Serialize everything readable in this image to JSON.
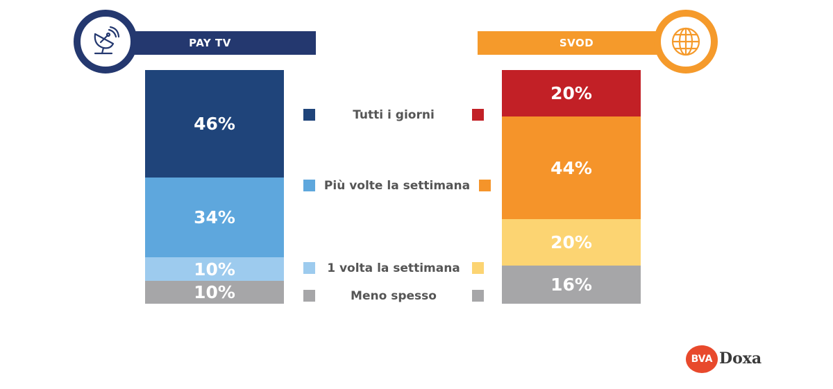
{
  "colors": {
    "paytv_header": "#24386f",
    "svod_header": "#f59a2b"
  },
  "headers": {
    "paytv": "PAY TV",
    "svod": "SVOD"
  },
  "icons": {
    "paytv": "satellite-dish-icon",
    "svod": "globe-icon"
  },
  "logo": {
    "badge": "BVA",
    "text": "Doxa"
  },
  "chart_data": {
    "type": "bar",
    "stacked": true,
    "categories": [
      "PAY TV",
      "SVOD"
    ],
    "series": [
      {
        "name": "Tutti i giorni",
        "values": [
          46,
          20
        ],
        "colors": [
          "#1f447a",
          "#c22026"
        ],
        "labels": [
          "46%",
          "20%"
        ]
      },
      {
        "name": "Più volte la settimana",
        "values": [
          34,
          44
        ],
        "colors": [
          "#5ea7dd",
          "#f5942a"
        ],
        "labels": [
          "34%",
          "44%"
        ]
      },
      {
        "name": "1 volta la settimana",
        "values": [
          10,
          20
        ],
        "colors": [
          "#9dcbee",
          "#fcd472"
        ],
        "labels": [
          "10%",
          "20%"
        ]
      },
      {
        "name": "Meno spesso",
        "values": [
          10,
          16
        ],
        "colors": [
          "#a6a6a8",
          "#a6a6a8"
        ],
        "labels": [
          "10%",
          "16%"
        ]
      }
    ],
    "ylim": [
      0,
      100
    ]
  }
}
